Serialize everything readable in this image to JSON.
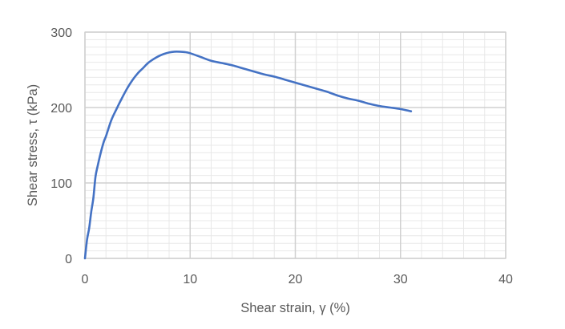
{
  "chart_data": {
    "type": "line",
    "title": "",
    "xlabel": "Shear strain, γ (%)",
    "ylabel": "Shear stress, τ (kPa)",
    "xlim": [
      0,
      40
    ],
    "ylim": [
      0,
      300
    ],
    "x_ticks": [
      0,
      10,
      20,
      30,
      40
    ],
    "y_ticks": [
      0,
      100,
      200,
      300
    ],
    "x_tick_labels": [
      "0",
      "10",
      "20",
      "30",
      "40"
    ],
    "y_tick_labels": [
      "0",
      "100",
      "200",
      "300"
    ],
    "grid": "major and minor",
    "legend": "none",
    "series": [
      {
        "color": "#4472c4",
        "x": [
          0,
          0.2,
          0.4,
          0.6,
          0.8,
          1.0,
          1.2,
          1.5,
          1.8,
          2.0,
          2.5,
          3.0,
          3.5,
          4.0,
          4.5,
          5.0,
          5.5,
          6.0,
          6.5,
          7.0,
          7.5,
          8.0,
          8.5,
          9.0,
          9.5,
          10.0,
          11.0,
          12.0,
          13.0,
          14.0,
          15.0,
          16.0,
          17.0,
          18.0,
          19.0,
          20.0,
          21.0,
          22.0,
          23.0,
          24.0,
          25.0,
          26.0,
          27.0,
          28.0,
          29.0,
          30.0,
          31.0
        ],
        "y": [
          0,
          25,
          40,
          62,
          80,
          108,
          122,
          140,
          155,
          162,
          183,
          198,
          212,
          225,
          236,
          245,
          252,
          259,
          264,
          268,
          271,
          273,
          274,
          274,
          273.5,
          272,
          267,
          262,
          259,
          256,
          252,
          248,
          244,
          241,
          237,
          233,
          229,
          225,
          221,
          216,
          212,
          209,
          205,
          202,
          200,
          198,
          195
        ]
      }
    ]
  }
}
